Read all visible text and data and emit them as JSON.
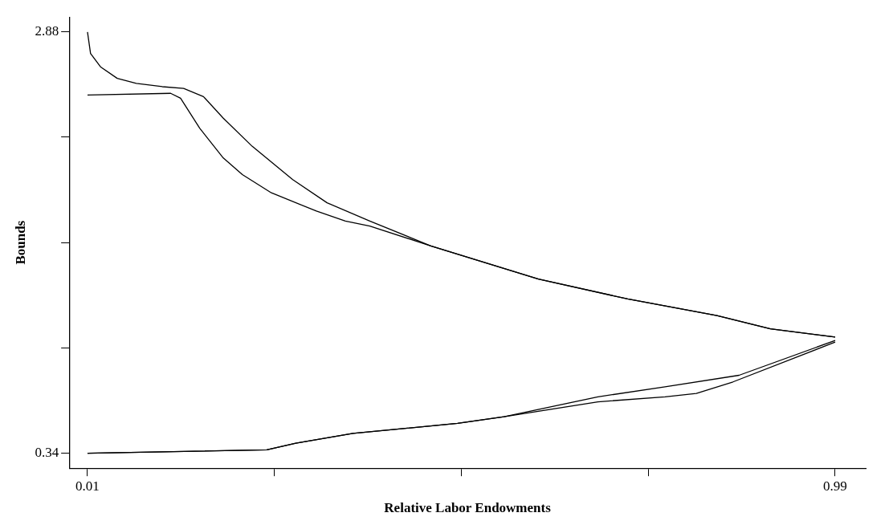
{
  "chart_data": {
    "type": "line",
    "xlabel": "Relative Labor Endowments",
    "ylabel": "Bounds",
    "xlim": [
      -0.014,
      1.03
    ],
    "ylim": [
      0.25,
      2.97
    ],
    "xticks": [
      0.01,
      {
        "value": 0.255,
        "label": null
      },
      {
        "value": 0.5,
        "label": null
      },
      {
        "value": 0.745,
        "label": null
      },
      0.99
    ],
    "yticks": [
      0.34,
      {
        "value": 0.975,
        "label": null
      },
      {
        "value": 1.61,
        "label": null
      },
      {
        "value": 2.245,
        "label": null
      },
      2.88
    ],
    "grid": false,
    "legend": false,
    "marker": "none",
    "line_style": "solid",
    "series": [
      {
        "color": "#000000",
        "x": [
          0.01,
          0.014,
          0.027,
          0.049,
          0.074,
          0.108,
          0.136,
          0.162,
          0.188,
          0.226,
          0.279,
          0.324,
          0.38,
          0.46,
          0.601,
          0.718,
          0.835,
          0.905,
          0.99
        ],
        "values": [
          2.88,
          2.75,
          2.67,
          2.6,
          2.57,
          2.55,
          2.54,
          2.49,
          2.36,
          2.19,
          1.99,
          1.85,
          1.74,
          1.59,
          1.39,
          1.27,
          1.17,
          1.09,
          1.04
        ]
      },
      {
        "color": "#000000",
        "x": [
          0.01,
          0.119,
          0.132,
          0.157,
          0.188,
          0.213,
          0.251,
          0.31,
          0.348,
          0.38,
          0.46,
          0.601,
          0.718,
          0.835,
          0.905,
          0.99
        ],
        "values": [
          2.5,
          2.51,
          2.48,
          2.3,
          2.12,
          2.02,
          1.91,
          1.8,
          1.74,
          1.71,
          1.59,
          1.39,
          1.27,
          1.17,
          1.09,
          1.04
        ]
      },
      {
        "color": "#000000",
        "x": [
          0.01,
          0.245,
          0.283,
          0.358,
          0.495,
          0.556,
          0.679,
          0.767,
          0.864,
          0.99
        ],
        "values": [
          0.34,
          0.36,
          0.4,
          0.46,
          0.52,
          0.56,
          0.68,
          0.74,
          0.81,
          1.02
        ]
      },
      {
        "color": "#000000",
        "x": [
          0.01,
          0.245,
          0.283,
          0.358,
          0.495,
          0.556,
          0.679,
          0.767,
          0.808,
          0.856,
          0.99
        ],
        "values": [
          0.34,
          0.36,
          0.4,
          0.46,
          0.52,
          0.56,
          0.65,
          0.68,
          0.7,
          0.77,
          1.01
        ]
      }
    ]
  }
}
